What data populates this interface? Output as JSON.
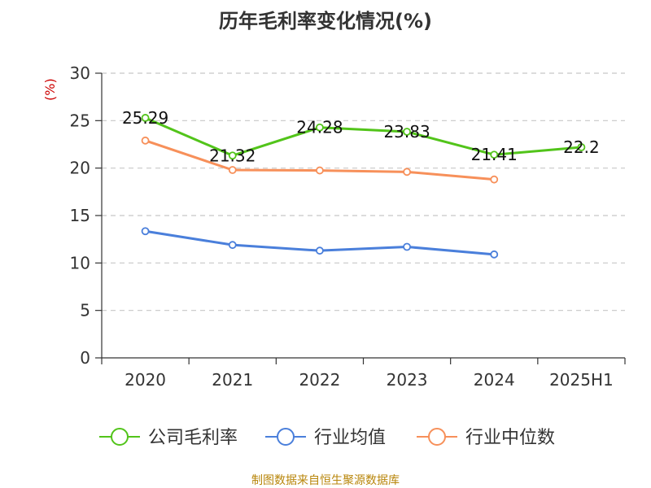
{
  "chart_data": {
    "type": "line",
    "title": "历年毛利率变化情况(%)",
    "ylabel": "(%)",
    "xlabel": "",
    "categories": [
      "2020",
      "2021",
      "2022",
      "2023",
      "2024",
      "2025H1"
    ],
    "ylim": [
      0,
      30
    ],
    "yticks": [
      0,
      5,
      10,
      15,
      20,
      25,
      30
    ],
    "grid": "horizontal-dashed",
    "legend_position": "bottom",
    "series": [
      {
        "name": "公司毛利率",
        "color": "#52c41a",
        "values": [
          25.29,
          21.32,
          24.28,
          23.83,
          21.41,
          22.2
        ],
        "labels": [
          "25.29",
          "21.32",
          "24.28",
          "23.83",
          "21.41",
          "22.2"
        ]
      },
      {
        "name": "行业均值",
        "color": "#4a7fdb",
        "values": [
          13.35,
          11.9,
          11.3,
          11.7,
          10.9,
          null
        ]
      },
      {
        "name": "行业中位数",
        "color": "#f7905a",
        "values": [
          22.9,
          19.8,
          19.75,
          19.6,
          18.8,
          null
        ]
      }
    ]
  },
  "source_text": "制图数据来自恒生聚源数据库"
}
